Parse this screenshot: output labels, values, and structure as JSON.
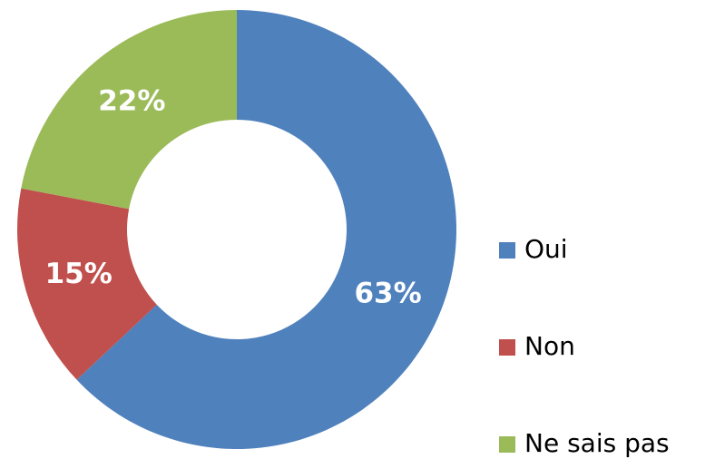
{
  "chart_data": {
    "type": "donut",
    "categories": [
      "Oui",
      "Non",
      "Ne sais pas"
    ],
    "values": [
      63,
      15,
      22
    ],
    "value_labels": [
      "63%",
      "15%",
      "22%"
    ],
    "colors": [
      "#4f81bd",
      "#c0504d",
      "#9bbb59"
    ],
    "legend": "right"
  }
}
